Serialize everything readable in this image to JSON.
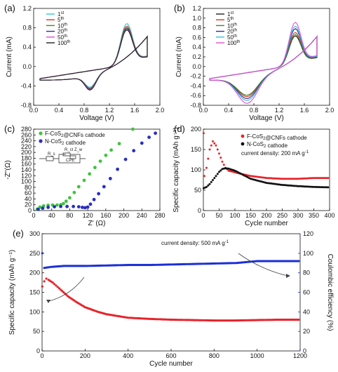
{
  "chart_data": [
    {
      "panel": "(a)",
      "type": "line",
      "xlabel": "Voltage (V)",
      "ylabel": "Current (mA)",
      "xlim": [
        0.0,
        2.0
      ],
      "ylim": [
        -0.8,
        1.2
      ],
      "xticks": [
        "0.0",
        "0.4",
        "0.8",
        "1.2",
        "1.6",
        "2.0"
      ],
      "yticks": [
        "-0.8",
        "-0.4",
        "0.0",
        "0.4",
        "0.8",
        "1.2"
      ],
      "legend_position": "top-left",
      "series": [
        {
          "name": "1st",
          "color": "#33c4d8",
          "cathodic_peak": [
            0.9,
            -0.44
          ],
          "anodic_peak": [
            1.47,
            1.0
          ]
        },
        {
          "name": "5th",
          "color": "#d63a1c",
          "cathodic_peak": [
            0.9,
            -0.46
          ],
          "anodic_peak": [
            1.47,
            0.95
          ]
        },
        {
          "name": "10th",
          "color": "#3a8a2a",
          "cathodic_peak": [
            0.9,
            -0.47
          ],
          "anodic_peak": [
            1.47,
            0.92
          ]
        },
        {
          "name": "20th",
          "color": "#2a2f9a",
          "cathodic_peak": [
            0.9,
            -0.48
          ],
          "anodic_peak": [
            1.47,
            0.9
          ]
        },
        {
          "name": "50th",
          "color": "#e64ad6",
          "cathodic_peak": [
            0.9,
            -0.49
          ],
          "anodic_peak": [
            1.47,
            0.88
          ]
        },
        {
          "name": "100th",
          "color": "#222222",
          "cathodic_peak": [
            0.9,
            -0.5
          ],
          "anodic_peak": [
            1.47,
            0.87
          ]
        }
      ]
    },
    {
      "panel": "(b)",
      "type": "line",
      "xlabel": "Voltage (V)",
      "ylabel": "Current (mA)",
      "xlim": [
        0.0,
        2.0
      ],
      "ylim": [
        -0.8,
        1.2
      ],
      "xticks": [
        "0.0",
        "0.4",
        "0.8",
        "1.2",
        "1.6",
        "2.0"
      ],
      "yticks": [
        "-0.8",
        "-0.6",
        "-0.4",
        "-0.2",
        "0.0",
        "0.2",
        "0.4",
        "0.6",
        "0.8",
        "1.0",
        "1.2"
      ],
      "legend_position": "top-left",
      "series": [
        {
          "name": "1st",
          "color": "#222222",
          "cathodic_peak": [
            0.7,
            -0.55
          ],
          "anodic_peak": [
            1.45,
            0.75
          ]
        },
        {
          "name": "5th",
          "color": "#d63a1c",
          "cathodic_peak": [
            0.7,
            -0.58
          ],
          "anodic_peak": [
            1.45,
            0.82
          ]
        },
        {
          "name": "10th",
          "color": "#3a8a2a",
          "cathodic_peak": [
            0.7,
            -0.55
          ],
          "anodic_peak": [
            1.45,
            0.78
          ]
        },
        {
          "name": "20th",
          "color": "#2a2f9a",
          "cathodic_peak": [
            0.7,
            -0.62
          ],
          "anodic_peak": [
            1.45,
            0.9
          ]
        },
        {
          "name": "50th",
          "color": "#33c4d8",
          "cathodic_peak": [
            0.7,
            -0.66
          ],
          "anodic_peak": [
            1.45,
            0.95
          ]
        },
        {
          "name": "100th",
          "color": "#e64ad6",
          "cathodic_peak": [
            0.7,
            -0.72
          ],
          "anodic_peak": [
            1.45,
            1.03
          ]
        }
      ]
    },
    {
      "panel": "(c)",
      "type": "scatter",
      "xlabel": "Z' (Ω)",
      "ylabel": "-Z''(Ω)",
      "xlim": [
        0,
        280
      ],
      "ylim": [
        0,
        280
      ],
      "xticks": [
        "0",
        "40",
        "80",
        "120",
        "160",
        "200",
        "240",
        "280"
      ],
      "yticks": [
        "0",
        "20",
        "40",
        "60",
        "80",
        "100",
        "120",
        "140",
        "160",
        "180",
        "200",
        "220",
        "240",
        "260",
        "280"
      ],
      "legend_position": "top-left",
      "circuit_labels": [
        "R_s",
        "R_ct",
        "CPE",
        "Z_w"
      ],
      "series": [
        {
          "name": "F-CoS2@CNFs cathode",
          "color": "#3cc43c",
          "points": [
            [
              8,
              5
            ],
            [
              14,
              12
            ],
            [
              22,
              16
            ],
            [
              32,
              18
            ],
            [
              42,
              19
            ],
            [
              52,
              19
            ],
            [
              60,
              20
            ],
            [
              66,
              24
            ],
            [
              72,
              32
            ],
            [
              80,
              44
            ],
            [
              90,
              62
            ],
            [
              100,
              82
            ],
            [
              112,
              104
            ],
            [
              124,
              126
            ],
            [
              136,
              148
            ],
            [
              148,
              170
            ],
            [
              160,
              190
            ],
            [
              172,
              208
            ],
            [
              190,
              230
            ],
            [
              220,
              280
            ]
          ]
        },
        {
          "name": "N-CoS2 cathode",
          "color": "#2a2fbf",
          "points": [
            [
              10,
              4
            ],
            [
              20,
              8
            ],
            [
              32,
              11
            ],
            [
              46,
              13
            ],
            [
              60,
              14
            ],
            [
              74,
              14
            ],
            [
              88,
              14
            ],
            [
              100,
              13
            ],
            [
              108,
              11
            ],
            [
              114,
              10
            ],
            [
              120,
              12
            ],
            [
              126,
              22
            ],
            [
              134,
              38
            ],
            [
              144,
              58
            ],
            [
              156,
              82
            ],
            [
              170,
              110
            ],
            [
              186,
              142
            ],
            [
              204,
              176
            ],
            [
              222,
              206
            ],
            [
              240,
              232
            ],
            [
              256,
              252
            ],
            [
              270,
              266
            ]
          ]
        }
      ]
    },
    {
      "panel": "(d)",
      "type": "scatter",
      "xlabel": "Cycle number",
      "ylabel": "Specific capacity (mAh g⁻¹)",
      "xlim": [
        0,
        400
      ],
      "ylim": [
        0,
        200
      ],
      "xticks": [
        "0",
        "50",
        "100",
        "150",
        "200",
        "250",
        "300",
        "350",
        "400"
      ],
      "yticks": [
        "0",
        "50",
        "100",
        "150",
        "200"
      ],
      "legend_position": "top-right",
      "annotation": "current density: 200 mA g⁻¹",
      "series": [
        {
          "name": "F-CoS2@CNFs cathode",
          "color": "#e8222a",
          "points": [
            [
              1,
              190
            ],
            [
              3,
              85
            ],
            [
              10,
              105
            ],
            [
              20,
              150
            ],
            [
              30,
              170
            ],
            [
              40,
              160
            ],
            [
              50,
              140
            ],
            [
              60,
              120
            ],
            [
              70,
              105
            ],
            [
              80,
              98
            ],
            [
              100,
              94
            ],
            [
              120,
              90
            ],
            [
              150,
              85
            ],
            [
              200,
              80
            ],
            [
              250,
              78
            ],
            [
              300,
              78
            ],
            [
              350,
              80
            ],
            [
              400,
              80
            ]
          ]
        },
        {
          "name": "N-CoS2 cathode",
          "color": "#111111",
          "points": [
            [
              1,
              55
            ],
            [
              10,
              58
            ],
            [
              20,
              65
            ],
            [
              30,
              75
            ],
            [
              40,
              85
            ],
            [
              50,
              95
            ],
            [
              60,
              102
            ],
            [
              70,
              104
            ],
            [
              80,
              103
            ],
            [
              100,
              98
            ],
            [
              120,
              90
            ],
            [
              150,
              78
            ],
            [
              200,
              68
            ],
            [
              250,
              63
            ],
            [
              300,
              60
            ],
            [
              350,
              58
            ],
            [
              400,
              57
            ]
          ]
        }
      ]
    },
    {
      "panel": "(e)",
      "type": "scatter",
      "xlabel": "Cycle number",
      "ylabel": "Specific capacity (mAh g⁻¹)",
      "y2label": "Coulombic efficiency (%)",
      "xlim": [
        0,
        1200
      ],
      "ylim": [
        0,
        300
      ],
      "y2lim": [
        0,
        120
      ],
      "xticks": [
        "0",
        "200",
        "400",
        "600",
        "800",
        "1000",
        "1200"
      ],
      "yticks": [
        "0",
        "50",
        "100",
        "150",
        "200",
        "250",
        "300"
      ],
      "y2ticks": [
        "0",
        "20",
        "40",
        "60",
        "80",
        "100",
        "120"
      ],
      "annotation": "current density: 500 mA g⁻¹",
      "series": [
        {
          "name": "Specific capacity",
          "color": "#e8222a",
          "points": [
            [
              1,
              165
            ],
            [
              10,
              178
            ],
            [
              20,
              185
            ],
            [
              30,
              182
            ],
            [
              50,
              175
            ],
            [
              80,
              160
            ],
            [
              120,
              140
            ],
            [
              160,
              125
            ],
            [
              200,
              112
            ],
            [
              260,
              100
            ],
            [
              300,
              94
            ],
            [
              400,
              85
            ],
            [
              500,
              82
            ],
            [
              600,
              80
            ],
            [
              700,
              79
            ],
            [
              800,
              78
            ],
            [
              900,
              78
            ],
            [
              1000,
              79
            ],
            [
              1100,
              80
            ],
            [
              1200,
              80
            ]
          ]
        },
        {
          "name": "Coulombic efficiency",
          "color": "#1a2fd6",
          "axis": "right",
          "points": [
            [
              1,
              100
            ],
            [
              10,
              85
            ],
            [
              40,
              86
            ],
            [
              100,
              87
            ],
            [
              200,
              87
            ],
            [
              300,
              87.5
            ],
            [
              400,
              88
            ],
            [
              500,
              88
            ],
            [
              600,
              88.5
            ],
            [
              700,
              89
            ],
            [
              800,
              89.5
            ],
            [
              900,
              90
            ],
            [
              1000,
              92
            ],
            [
              1100,
              92
            ],
            [
              1200,
              92
            ]
          ]
        }
      ]
    }
  ]
}
